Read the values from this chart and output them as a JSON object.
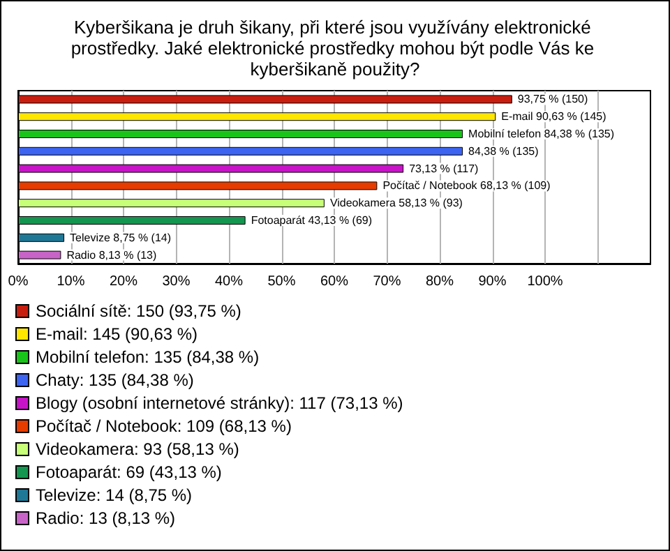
{
  "chart_data": {
    "type": "bar",
    "orientation": "horizontal",
    "stacked": true,
    "title": "Kyberšikana je druh šikany, při které jsou využívány elektronické prostředky. Jaké elektronické prostředky mohou být podle Vás ke kyberšikaně použity?",
    "categories": [
      null,
      null,
      null,
      null,
      null,
      null,
      null,
      null,
      null,
      null
    ],
    "series": [
      {
        "name": "Sociální sítě: 150 (93,75 %)",
        "color": "#c81e0f",
        "values": [
          93.75,
          null,
          null,
          null,
          null,
          null,
          null,
          null,
          null,
          null
        ],
        "value_labels": [
          "93,75 % (150)",
          null,
          null,
          null,
          null,
          null,
          null,
          null,
          null,
          null
        ]
      },
      {
        "name": "E-mail: 145 (90,63 %)",
        "color": "#ffe600",
        "values": [
          null,
          90.63,
          null,
          null,
          null,
          null,
          null,
          null,
          null,
          null
        ],
        "value_labels": [
          null,
          "E-mail 90,63 % (145)",
          null,
          null,
          null,
          null,
          null,
          null,
          null,
          null
        ]
      },
      {
        "name": "Mobilní telefon: 135 (84,38 %)",
        "color": "#19c319",
        "values": [
          null,
          null,
          84.38,
          null,
          null,
          null,
          null,
          null,
          null,
          null
        ],
        "value_labels": [
          null,
          null,
          "Mobilní telefon 84,38 % (135)",
          null,
          null,
          null,
          null,
          null,
          null,
          null
        ]
      },
      {
        "name": "Chaty: 135 (84,38 %)",
        "color": "#3c64f0",
        "values": [
          null,
          null,
          null,
          84.38,
          null,
          null,
          null,
          null,
          null,
          null
        ],
        "value_labels": [
          null,
          null,
          null,
          "84,38 % (135)",
          null,
          null,
          null,
          null,
          null,
          null
        ]
      },
      {
        "name": "Blogy (osobní internetové stránky): 117 (73,13 %)",
        "color": "#c814c8",
        "values": [
          null,
          null,
          null,
          null,
          73.13,
          null,
          null,
          null,
          null,
          null
        ],
        "value_labels": [
          null,
          null,
          null,
          null,
          "73,13 % (117)",
          null,
          null,
          null,
          null,
          null
        ]
      },
      {
        "name": "Počítač / Notebook: 109 (68,13 %)",
        "color": "#e63c00",
        "values": [
          null,
          null,
          null,
          null,
          null,
          68.13,
          null,
          null,
          null,
          null
        ],
        "value_labels": [
          null,
          null,
          null,
          null,
          null,
          "Počítač / Notebook 68,13 % (109)",
          null,
          null,
          null,
          null
        ]
      },
      {
        "name": "Videokamera: 93 (58,13 %)",
        "color": "#c8ff78",
        "values": [
          null,
          null,
          null,
          null,
          null,
          null,
          58.13,
          null,
          null,
          null
        ],
        "value_labels": [
          null,
          null,
          null,
          null,
          null,
          null,
          "Videokamera 58,13 % (93)",
          null,
          null,
          null
        ]
      },
      {
        "name": "Fotoaparát: 69 (43,13 %)",
        "color": "#149650",
        "values": [
          null,
          null,
          null,
          null,
          null,
          null,
          null,
          43.13,
          null,
          null
        ],
        "value_labels": [
          null,
          null,
          null,
          null,
          null,
          null,
          null,
          "Fotoaparát 43,13 % (69)",
          null,
          null
        ]
      },
      {
        "name": "Televize: 14 (8,75 %)",
        "color": "#1e7896",
        "values": [
          null,
          null,
          null,
          null,
          null,
          null,
          null,
          null,
          8.75,
          null
        ],
        "value_labels": [
          null,
          null,
          null,
          null,
          null,
          null,
          null,
          null,
          "Televize 8,75 % (14)",
          null
        ]
      },
      {
        "name": "Radio: 13 (8,13 %)",
        "color": "#c864c8",
        "values": [
          null,
          null,
          null,
          null,
          null,
          null,
          null,
          null,
          null,
          8.13
        ],
        "value_labels": [
          null,
          null,
          null,
          null,
          null,
          null,
          null,
          null,
          null,
          "Radio 8,13 % (13)"
        ]
      }
    ],
    "xlim": [
      0,
      120
    ],
    "xticks": [
      {
        "value": 0,
        "label": "0%"
      },
      {
        "value": 10,
        "label": "10%"
      },
      {
        "value": 20,
        "label": "20%"
      },
      {
        "value": 30,
        "label": "30%"
      },
      {
        "value": 40,
        "label": "40%"
      },
      {
        "value": 50,
        "label": "50%"
      },
      {
        "value": 60,
        "label": "60%"
      },
      {
        "value": 70,
        "label": "70%"
      },
      {
        "value": 80,
        "label": "80%"
      },
      {
        "value": 90,
        "label": "90%"
      },
      {
        "value": 100,
        "label": "100%"
      },
      {
        "value": 110,
        "label": null
      }
    ],
    "grid": "x",
    "legend": "bottom"
  }
}
